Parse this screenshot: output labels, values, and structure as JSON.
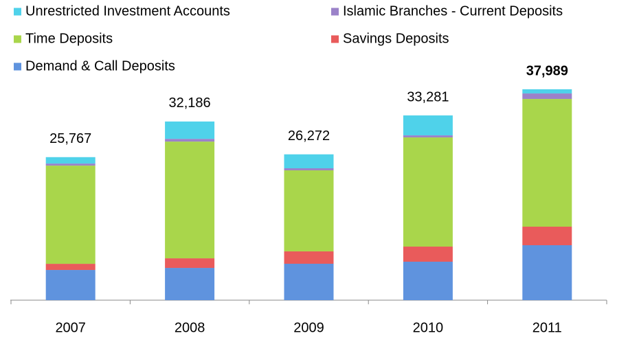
{
  "chart_data": {
    "type": "stacked_bar",
    "categories": [
      "2007",
      "2008",
      "2009",
      "2010",
      "2011"
    ],
    "series": [
      {
        "name": "Unrestricted Investment Accounts",
        "color": "#4fd2ea",
        "values": [
          1157,
          3126,
          2512,
          3591,
          749
        ]
      },
      {
        "name": "Islamic Branches - Current Deposits",
        "color": "#9b82c9",
        "values": [
          370,
          490,
          370,
          370,
          990
        ]
      },
      {
        "name": "Time Deposits",
        "color": "#a9d64b",
        "values": [
          17690,
          21030,
          14600,
          19670,
          23010
        ]
      },
      {
        "name": "Savings Deposits",
        "color": "#e95b5b",
        "values": [
          1110,
          1730,
          2230,
          2720,
          3340
        ]
      },
      {
        "name": "Demand & Call Deposits",
        "color": "#5f93de",
        "values": [
          5440,
          5810,
          6560,
          6930,
          9900
        ]
      }
    ],
    "totals": [
      {
        "value": 25767,
        "label": "25,767"
      },
      {
        "value": 32186,
        "label": "32,186"
      },
      {
        "value": 26272,
        "label": "26,272"
      },
      {
        "value": 33281,
        "label": "33,281"
      },
      {
        "value": 37989,
        "label": "37,989"
      }
    ],
    "highlight_index": 4
  }
}
